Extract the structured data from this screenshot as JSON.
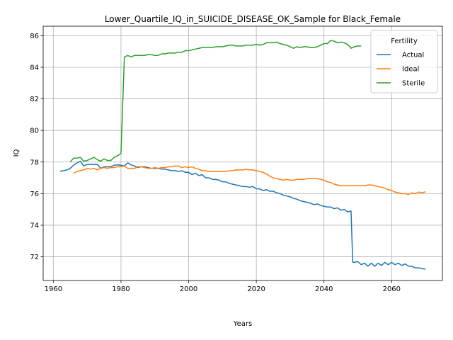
{
  "chart_data": {
    "type": "line",
    "title": "Lower_Quartile_IQ_in_SUICIDE_DISEASE_OK_Sample for Black_Female",
    "xlabel": "Years",
    "ylabel": "IQ",
    "xlim": [
      1957,
      2075
    ],
    "ylim": [
      70.5,
      86.6
    ],
    "x_ticks": [
      1960,
      1980,
      2000,
      2020,
      2040,
      2060
    ],
    "y_ticks": [
      72,
      74,
      76,
      78,
      80,
      82,
      84,
      86
    ],
    "grid": true,
    "legend": {
      "title": "Fertility",
      "placement": "top-right"
    },
    "series": [
      {
        "name": "Actual",
        "color": "#1f77b4",
        "points": [
          [
            1962,
            77.42
          ],
          [
            1963,
            77.45
          ],
          [
            1964,
            77.5
          ],
          [
            1965,
            77.6
          ],
          [
            1966,
            77.8
          ],
          [
            1967,
            77.95
          ],
          [
            1968,
            78.05
          ],
          [
            1969,
            77.75
          ],
          [
            1970,
            77.85
          ],
          [
            1971,
            77.85
          ],
          [
            1972,
            77.85
          ],
          [
            1973,
            77.85
          ],
          [
            1974,
            77.6
          ],
          [
            1975,
            77.7
          ],
          [
            1976,
            77.7
          ],
          [
            1977,
            77.7
          ],
          [
            1978,
            77.8
          ],
          [
            1979,
            77.82
          ],
          [
            1980,
            77.8
          ],
          [
            1981,
            77.75
          ],
          [
            1982,
            77.95
          ],
          [
            1983,
            77.82
          ],
          [
            1984,
            77.75
          ],
          [
            1985,
            77.65
          ],
          [
            1986,
            77.7
          ],
          [
            1987,
            77.7
          ],
          [
            1988,
            77.65
          ],
          [
            1989,
            77.6
          ],
          [
            1990,
            77.6
          ],
          [
            1991,
            77.6
          ],
          [
            1992,
            77.55
          ],
          [
            1993,
            77.55
          ],
          [
            1994,
            77.5
          ],
          [
            1995,
            77.45
          ],
          [
            1996,
            77.45
          ],
          [
            1997,
            77.4
          ],
          [
            1998,
            77.45
          ],
          [
            1999,
            77.35
          ],
          [
            2000,
            77.35
          ],
          [
            2001,
            77.2
          ],
          [
            2002,
            77.3
          ],
          [
            2003,
            77.15
          ],
          [
            2004,
            77.2
          ],
          [
            2005,
            77.0
          ],
          [
            2006,
            77.0
          ],
          [
            2007,
            76.9
          ],
          [
            2008,
            76.9
          ],
          [
            2009,
            76.85
          ],
          [
            2010,
            76.75
          ],
          [
            2011,
            76.75
          ],
          [
            2012,
            76.65
          ],
          [
            2013,
            76.6
          ],
          [
            2014,
            76.55
          ],
          [
            2015,
            76.5
          ],
          [
            2016,
            76.45
          ],
          [
            2017,
            76.45
          ],
          [
            2018,
            76.4
          ],
          [
            2019,
            76.45
          ],
          [
            2020,
            76.3
          ],
          [
            2021,
            76.3
          ],
          [
            2022,
            76.2
          ],
          [
            2023,
            76.25
          ],
          [
            2024,
            76.15
          ],
          [
            2025,
            76.15
          ],
          [
            2026,
            76.05
          ],
          [
            2027,
            76.0
          ],
          [
            2028,
            75.9
          ],
          [
            2029,
            75.85
          ],
          [
            2030,
            75.8
          ],
          [
            2031,
            75.7
          ],
          [
            2032,
            75.65
          ],
          [
            2033,
            75.55
          ],
          [
            2034,
            75.5
          ],
          [
            2035,
            75.45
          ],
          [
            2036,
            75.4
          ],
          [
            2037,
            75.3
          ],
          [
            2038,
            75.35
          ],
          [
            2039,
            75.25
          ],
          [
            2040,
            75.2
          ],
          [
            2041,
            75.15
          ],
          [
            2042,
            75.15
          ],
          [
            2043,
            75.05
          ],
          [
            2044,
            75.1
          ],
          [
            2045,
            74.95
          ],
          [
            2046,
            75.0
          ],
          [
            2047,
            74.85
          ],
          [
            2048,
            74.9
          ],
          [
            2048.5,
            71.65
          ],
          [
            2049,
            71.65
          ],
          [
            2050,
            71.7
          ],
          [
            2051,
            71.5
          ],
          [
            2052,
            71.6
          ],
          [
            2053,
            71.4
          ],
          [
            2054,
            71.6
          ],
          [
            2055,
            71.4
          ],
          [
            2056,
            71.6
          ],
          [
            2057,
            71.45
          ],
          [
            2058,
            71.65
          ],
          [
            2059,
            71.5
          ],
          [
            2060,
            71.65
          ],
          [
            2061,
            71.5
          ],
          [
            2062,
            71.6
          ],
          [
            2063,
            71.45
          ],
          [
            2064,
            71.55
          ],
          [
            2065,
            71.4
          ],
          [
            2066,
            71.4
          ],
          [
            2067,
            71.3
          ],
          [
            2068,
            71.3
          ],
          [
            2069,
            71.25
          ],
          [
            2070,
            71.22
          ]
        ]
      },
      {
        "name": "Ideal",
        "color": "#ff7f0e",
        "points": [
          [
            1966,
            77.3
          ],
          [
            1967,
            77.4
          ],
          [
            1968,
            77.45
          ],
          [
            1969,
            77.5
          ],
          [
            1970,
            77.6
          ],
          [
            1971,
            77.55
          ],
          [
            1972,
            77.6
          ],
          [
            1973,
            77.5
          ],
          [
            1974,
            77.6
          ],
          [
            1975,
            77.65
          ],
          [
            1976,
            77.6
          ],
          [
            1977,
            77.65
          ],
          [
            1978,
            77.65
          ],
          [
            1979,
            77.7
          ],
          [
            1980,
            77.7
          ],
          [
            1981,
            77.75
          ],
          [
            1982,
            77.6
          ],
          [
            1983,
            77.6
          ],
          [
            1984,
            77.6
          ],
          [
            1985,
            77.7
          ],
          [
            1986,
            77.7
          ],
          [
            1987,
            77.65
          ],
          [
            1988,
            77.6
          ],
          [
            1989,
            77.6
          ],
          [
            1990,
            77.65
          ],
          [
            1991,
            77.6
          ],
          [
            1992,
            77.65
          ],
          [
            1993,
            77.65
          ],
          [
            1994,
            77.7
          ],
          [
            1995,
            77.7
          ],
          [
            1996,
            77.75
          ],
          [
            1997,
            77.75
          ],
          [
            1998,
            77.65
          ],
          [
            1999,
            77.7
          ],
          [
            2000,
            77.65
          ],
          [
            2001,
            77.7
          ],
          [
            2002,
            77.6
          ],
          [
            2003,
            77.55
          ],
          [
            2004,
            77.45
          ],
          [
            2005,
            77.45
          ],
          [
            2006,
            77.4
          ],
          [
            2007,
            77.4
          ],
          [
            2008,
            77.4
          ],
          [
            2009,
            77.4
          ],
          [
            2010,
            77.4
          ],
          [
            2011,
            77.4
          ],
          [
            2012,
            77.45
          ],
          [
            2013,
            77.45
          ],
          [
            2014,
            77.5
          ],
          [
            2015,
            77.5
          ],
          [
            2016,
            77.5
          ],
          [
            2017,
            77.55
          ],
          [
            2018,
            77.5
          ],
          [
            2019,
            77.5
          ],
          [
            2020,
            77.45
          ],
          [
            2021,
            77.4
          ],
          [
            2022,
            77.35
          ],
          [
            2023,
            77.25
          ],
          [
            2024,
            77.1
          ],
          [
            2025,
            77.0
          ],
          [
            2026,
            76.95
          ],
          [
            2027,
            76.9
          ],
          [
            2028,
            76.85
          ],
          [
            2029,
            76.9
          ],
          [
            2030,
            76.85
          ],
          [
            2031,
            76.85
          ],
          [
            2032,
            76.9
          ],
          [
            2033,
            76.9
          ],
          [
            2034,
            76.9
          ],
          [
            2035,
            76.95
          ],
          [
            2036,
            76.95
          ],
          [
            2037,
            76.95
          ],
          [
            2038,
            76.95
          ],
          [
            2039,
            76.9
          ],
          [
            2040,
            76.85
          ],
          [
            2041,
            76.75
          ],
          [
            2042,
            76.7
          ],
          [
            2043,
            76.6
          ],
          [
            2044,
            76.55
          ],
          [
            2045,
            76.5
          ],
          [
            2046,
            76.5
          ],
          [
            2047,
            76.5
          ],
          [
            2048,
            76.5
          ],
          [
            2049,
            76.5
          ],
          [
            2050,
            76.5
          ],
          [
            2051,
            76.5
          ],
          [
            2052,
            76.5
          ],
          [
            2053,
            76.55
          ],
          [
            2054,
            76.55
          ],
          [
            2055,
            76.5
          ],
          [
            2056,
            76.45
          ],
          [
            2057,
            76.4
          ],
          [
            2058,
            76.35
          ],
          [
            2059,
            76.25
          ],
          [
            2060,
            76.2
          ],
          [
            2061,
            76.1
          ],
          [
            2062,
            76.05
          ],
          [
            2063,
            76.0
          ],
          [
            2064,
            76.0
          ],
          [
            2065,
            75.95
          ],
          [
            2066,
            76.05
          ],
          [
            2067,
            76.0
          ],
          [
            2068,
            76.1
          ],
          [
            2069,
            76.05
          ],
          [
            2070,
            76.12
          ]
        ]
      },
      {
        "name": "Sterile",
        "color": "#2ca02c",
        "points": [
          [
            1965,
            78.0
          ],
          [
            1966,
            78.25
          ],
          [
            1967,
            78.25
          ],
          [
            1968,
            78.3
          ],
          [
            1969,
            78.05
          ],
          [
            1970,
            78.1
          ],
          [
            1971,
            78.2
          ],
          [
            1972,
            78.3
          ],
          [
            1973,
            78.15
          ],
          [
            1974,
            78.05
          ],
          [
            1975,
            78.2
          ],
          [
            1976,
            78.1
          ],
          [
            1977,
            78.1
          ],
          [
            1978,
            78.3
          ],
          [
            1979,
            78.4
          ],
          [
            1980,
            78.55
          ],
          [
            1981,
            84.65
          ],
          [
            1982,
            84.75
          ],
          [
            1983,
            84.65
          ],
          [
            1984,
            84.75
          ],
          [
            1985,
            84.75
          ],
          [
            1986,
            84.75
          ],
          [
            1987,
            84.75
          ],
          [
            1988,
            84.8
          ],
          [
            1989,
            84.8
          ],
          [
            1990,
            84.75
          ],
          [
            1991,
            84.75
          ],
          [
            1992,
            84.85
          ],
          [
            1993,
            84.85
          ],
          [
            1994,
            84.9
          ],
          [
            1995,
            84.9
          ],
          [
            1996,
            84.9
          ],
          [
            1997,
            84.95
          ],
          [
            1998,
            84.95
          ],
          [
            1999,
            85.05
          ],
          [
            2000,
            85.05
          ],
          [
            2001,
            85.1
          ],
          [
            2002,
            85.15
          ],
          [
            2003,
            85.2
          ],
          [
            2004,
            85.25
          ],
          [
            2005,
            85.25
          ],
          [
            2006,
            85.25
          ],
          [
            2007,
            85.25
          ],
          [
            2008,
            85.3
          ],
          [
            2009,
            85.3
          ],
          [
            2010,
            85.3
          ],
          [
            2011,
            85.35
          ],
          [
            2012,
            85.4
          ],
          [
            2013,
            85.4
          ],
          [
            2014,
            85.35
          ],
          [
            2015,
            85.35
          ],
          [
            2016,
            85.35
          ],
          [
            2017,
            85.4
          ],
          [
            2018,
            85.4
          ],
          [
            2019,
            85.4
          ],
          [
            2020,
            85.45
          ],
          [
            2021,
            85.4
          ],
          [
            2022,
            85.45
          ],
          [
            2023,
            85.55
          ],
          [
            2024,
            85.55
          ],
          [
            2025,
            85.55
          ],
          [
            2026,
            85.6
          ],
          [
            2027,
            85.5
          ],
          [
            2028,
            85.45
          ],
          [
            2029,
            85.4
          ],
          [
            2030,
            85.3
          ],
          [
            2031,
            85.2
          ],
          [
            2032,
            85.3
          ],
          [
            2033,
            85.25
          ],
          [
            2034,
            85.3
          ],
          [
            2035,
            85.3
          ],
          [
            2036,
            85.25
          ],
          [
            2037,
            85.25
          ],
          [
            2038,
            85.3
          ],
          [
            2039,
            85.4
          ],
          [
            2040,
            85.5
          ],
          [
            2041,
            85.5
          ],
          [
            2042,
            85.7
          ],
          [
            2043,
            85.65
          ],
          [
            2044,
            85.55
          ],
          [
            2045,
            85.6
          ],
          [
            2046,
            85.55
          ],
          [
            2047,
            85.45
          ],
          [
            2048,
            85.2
          ],
          [
            2049,
            85.3
          ],
          [
            2050,
            85.35
          ],
          [
            2051,
            85.35
          ]
        ]
      }
    ]
  }
}
